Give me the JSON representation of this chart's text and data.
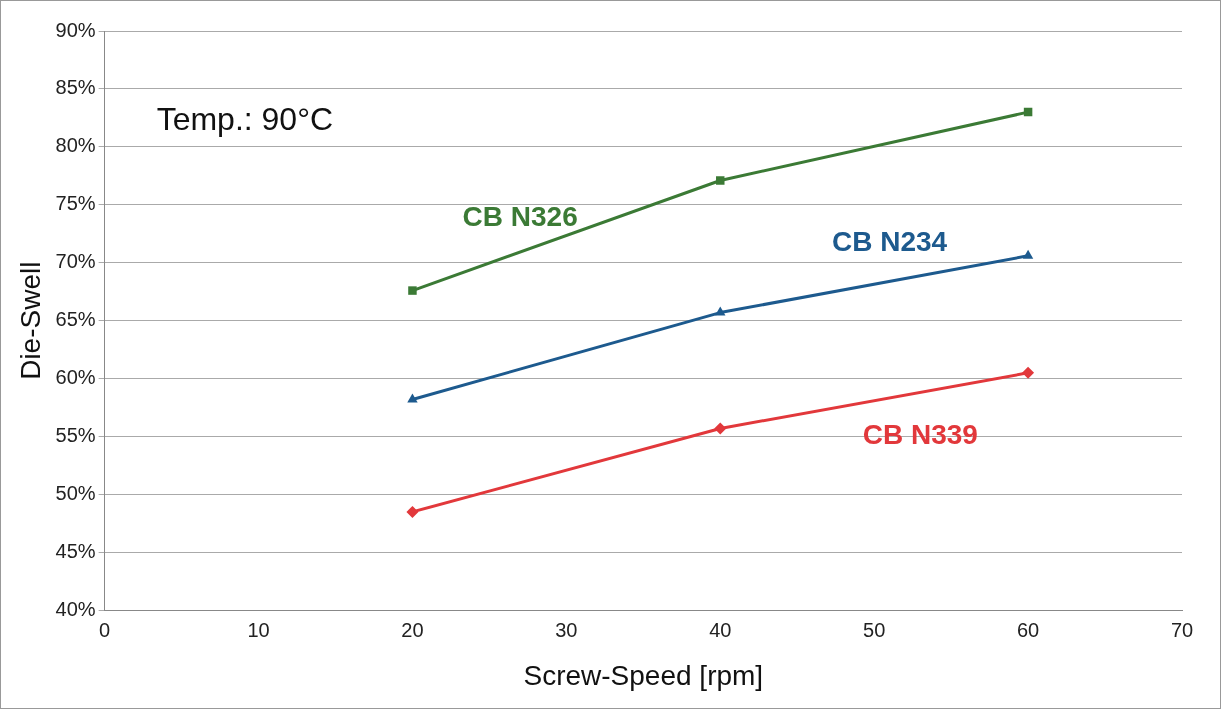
{
  "chart_data": {
    "type": "line",
    "xlabel": "Screw-Speed [rpm]",
    "ylabel": "Die-Swell",
    "x": [
      20,
      40,
      60
    ],
    "series": [
      {
        "name": "CB N326",
        "color": "#3b7a35",
        "values": [
          67.6,
          77.1,
          83.0
        ],
        "marker": "square"
      },
      {
        "name": "CB N234",
        "color": "#1d5a8e",
        "values": [
          58.2,
          65.7,
          70.6
        ],
        "marker": "triangle"
      },
      {
        "name": "CB N339",
        "color": "#e2383b",
        "values": [
          48.5,
          55.7,
          60.5
        ],
        "marker": "diamond"
      }
    ],
    "xlim": [
      0,
      70
    ],
    "xticks": [
      0,
      10,
      20,
      30,
      40,
      50,
      60,
      70
    ],
    "ylim": [
      40,
      90
    ],
    "yticks": [
      {
        "value": 40,
        "label": "40%"
      },
      {
        "value": 45,
        "label": "45%"
      },
      {
        "value": 50,
        "label": "50%"
      },
      {
        "value": 55,
        "label": "55%"
      },
      {
        "value": 60,
        "label": "60%"
      },
      {
        "value": 65,
        "label": "65%"
      },
      {
        "value": 70,
        "label": "70%"
      },
      {
        "value": 75,
        "label": "75%"
      },
      {
        "value": 80,
        "label": "80%"
      },
      {
        "value": 85,
        "label": "85%"
      },
      {
        "value": 90,
        "label": "90%"
      }
    ],
    "annotations": [
      "Temp.: 90°C"
    ],
    "grid": "y",
    "legend": false,
    "line_style": "solid"
  }
}
